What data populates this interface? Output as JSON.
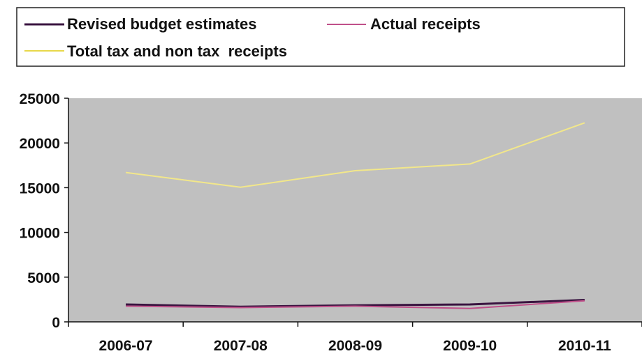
{
  "chart_data": {
    "type": "line",
    "categories": [
      "2006-07",
      "2007-08",
      "2008-09",
      "2009-10",
      "2010-11"
    ],
    "series": [
      {
        "name": "Revised budget estimates",
        "color": "#3a1440",
        "values": [
          1950,
          1700,
          1850,
          1950,
          2450
        ]
      },
      {
        "name": "Actual receipts",
        "color": "#c0508a",
        "values": [
          1750,
          1600,
          1750,
          1500,
          2350
        ]
      },
      {
        "name": "Total tax and non tax  receipts",
        "color": "#f2e78a",
        "values": [
          16700,
          15050,
          16900,
          17650,
          22250
        ]
      }
    ],
    "ylim": [
      0,
      25000
    ],
    "yticks": [
      "0",
      "5000",
      "10000",
      "15000",
      "20000",
      "25000"
    ],
    "grid": false,
    "legend": "top",
    "plot_background": "#c0c0c0"
  }
}
